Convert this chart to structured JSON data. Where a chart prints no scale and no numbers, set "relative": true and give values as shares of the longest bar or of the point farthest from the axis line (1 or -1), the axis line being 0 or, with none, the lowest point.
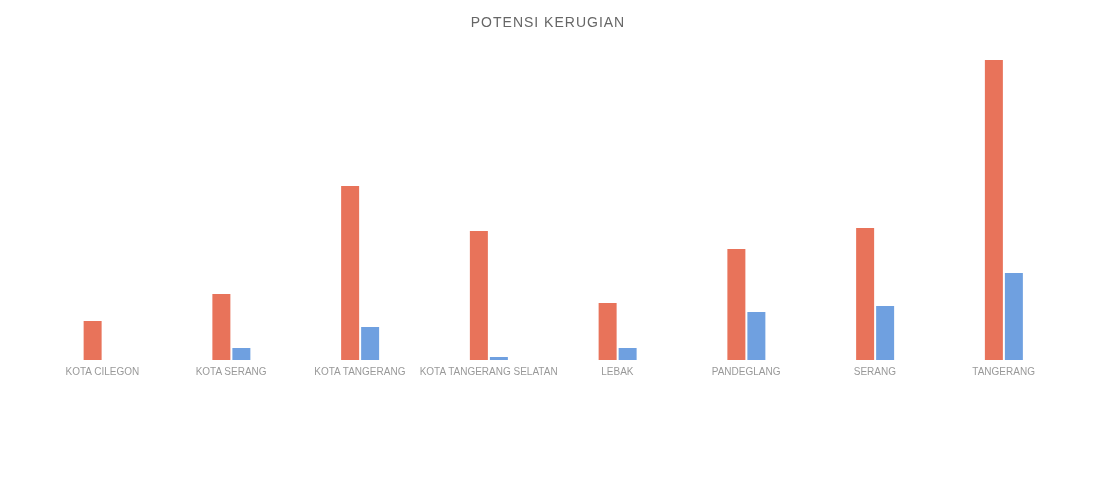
{
  "chart_data": {
    "type": "bar",
    "title": "POTENSI KERUGIAN",
    "relative": true,
    "categories": [
      "KOTA CILEGON",
      "KOTA SERANG",
      "KOTA TANGERANG",
      "KOTA TANGERANG SELATAN",
      "LEBAK",
      "PANDEGLANG",
      "SERANG",
      "TANGERANG"
    ],
    "series": [
      {
        "color": "#e8735a",
        "values": [
          0.13,
          0.22,
          0.58,
          0.43,
          0.19,
          0.37,
          0.44,
          1
        ]
      },
      {
        "color": "#6fa0e0",
        "values": [
          0,
          0.04,
          0.11,
          0.01,
          0.04,
          0.16,
          0.18,
          0.29
        ]
      }
    ]
  }
}
